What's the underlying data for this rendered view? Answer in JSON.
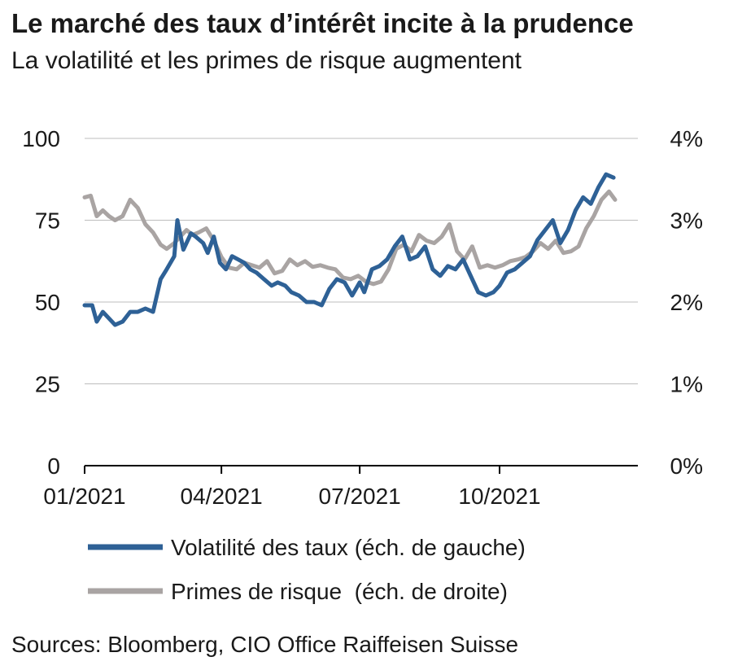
{
  "header": {
    "title": "Le marché des taux d’intérêt incite à la prudence",
    "subtitle": "La volatilité et les primes de risque augmentent"
  },
  "footer": {
    "source": "Sources: Bloomberg, CIO Office Raiffeisen Suisse"
  },
  "chart_data": {
    "type": "line",
    "title": "Le marché des taux d’intérêt incite à la prudence",
    "subtitle": "La volatilité et les primes de risque augmentent",
    "x_ticks": [
      "01/2021",
      "04/2021",
      "07/2021",
      "10/2021"
    ],
    "x_range": [
      "2021-01",
      "2021-12"
    ],
    "y_left": {
      "range": [
        0,
        100
      ],
      "ticks": [
        "0",
        "25",
        "50",
        "75",
        "100"
      ]
    },
    "y_right": {
      "range": [
        0,
        4
      ],
      "ticks": [
        "0%",
        "1%",
        "2%",
        "3%",
        "4%"
      ]
    },
    "grid": "horizontal",
    "legend_position": "bottom",
    "series": [
      {
        "name": "Volatilité des taux (éch. de gauche)",
        "axis": "left",
        "color": "#2e6196",
        "x": [
          "2021-01-01",
          "2021-01-06",
          "2021-01-09",
          "2021-01-13",
          "2021-01-17",
          "2021-01-21",
          "2021-01-26",
          "2021-01-31",
          "2021-02-05",
          "2021-02-10",
          "2021-02-15",
          "2021-02-20",
          "2021-02-24",
          "2021-03-01",
          "2021-03-03",
          "2021-03-07",
          "2021-03-12",
          "2021-03-15",
          "2021-03-20",
          "2021-03-23",
          "2021-03-27",
          "2021-03-31",
          "2021-04-04",
          "2021-04-08",
          "2021-04-12",
          "2021-04-16",
          "2021-04-20",
          "2021-04-24",
          "2021-04-29",
          "2021-05-04",
          "2021-05-08",
          "2021-05-13",
          "2021-05-17",
          "2021-05-22",
          "2021-05-27",
          "2021-06-01",
          "2021-06-06",
          "2021-06-11",
          "2021-06-16",
          "2021-06-21",
          "2021-06-26",
          "2021-07-01",
          "2021-07-04",
          "2021-07-09",
          "2021-07-14",
          "2021-07-19",
          "2021-07-24",
          "2021-07-29",
          "2021-08-03",
          "2021-08-08",
          "2021-08-13",
          "2021-08-18",
          "2021-08-23",
          "2021-08-28",
          "2021-09-02",
          "2021-09-07",
          "2021-09-12",
          "2021-09-17",
          "2021-09-22",
          "2021-09-27",
          "2021-10-01",
          "2021-10-06",
          "2021-10-11",
          "2021-10-16",
          "2021-10-21",
          "2021-10-26",
          "2021-10-31",
          "2021-11-05",
          "2021-11-10",
          "2021-11-15",
          "2021-11-20",
          "2021-11-25",
          "2021-11-30",
          "2021-12-05",
          "2021-12-10",
          "2021-12-15"
        ],
        "values": [
          49,
          49,
          44,
          47,
          45,
          43,
          44,
          47,
          47,
          48,
          47,
          57,
          60,
          64,
          75,
          66,
          71,
          70,
          68,
          65,
          70,
          62,
          60,
          64,
          63,
          62,
          60,
          59,
          57,
          55,
          56,
          55,
          53,
          52,
          50,
          50,
          49,
          54,
          57,
          56,
          52,
          56,
          53,
          60,
          61,
          63,
          67,
          70,
          63,
          64,
          67,
          60,
          58,
          61,
          60,
          63,
          58,
          53,
          52,
          53,
          55,
          59,
          60,
          62,
          64,
          69,
          72,
          75,
          68,
          72,
          78,
          82,
          80,
          85,
          89,
          88
        ]
      },
      {
        "name": "Primes de risque  (éch. de droite)",
        "axis": "right",
        "color": "#a9a4a3",
        "x": [
          "2021-01-01",
          "2021-01-05",
          "2021-01-09",
          "2021-01-13",
          "2021-01-17",
          "2021-01-21",
          "2021-01-26",
          "2021-01-31",
          "2021-02-05",
          "2021-02-10",
          "2021-02-15",
          "2021-02-20",
          "2021-02-24",
          "2021-03-01",
          "2021-03-05",
          "2021-03-09",
          "2021-03-13",
          "2021-03-17",
          "2021-03-22",
          "2021-03-27",
          "2021-04-01",
          "2021-04-06",
          "2021-04-11",
          "2021-04-16",
          "2021-04-21",
          "2021-04-26",
          "2021-05-01",
          "2021-05-06",
          "2021-05-11",
          "2021-05-16",
          "2021-05-21",
          "2021-05-26",
          "2021-05-31",
          "2021-06-05",
          "2021-06-10",
          "2021-06-15",
          "2021-06-20",
          "2021-06-25",
          "2021-06-30",
          "2021-07-05",
          "2021-07-10",
          "2021-07-15",
          "2021-07-20",
          "2021-07-25",
          "2021-07-30",
          "2021-08-04",
          "2021-08-09",
          "2021-08-14",
          "2021-08-19",
          "2021-08-24",
          "2021-08-29",
          "2021-09-03",
          "2021-09-08",
          "2021-09-13",
          "2021-09-18",
          "2021-09-23",
          "2021-09-28",
          "2021-10-03",
          "2021-10-08",
          "2021-10-13",
          "2021-10-18",
          "2021-10-23",
          "2021-10-28",
          "2021-11-02",
          "2021-11-07",
          "2021-11-12",
          "2021-11-17",
          "2021-11-22",
          "2021-11-27",
          "2021-12-02",
          "2021-12-07",
          "2021-12-12",
          "2021-12-16"
        ],
        "values": [
          3.28,
          3.3,
          3.05,
          3.12,
          3.05,
          3.0,
          3.05,
          3.25,
          3.15,
          2.95,
          2.85,
          2.7,
          2.65,
          2.72,
          2.8,
          2.88,
          2.82,
          2.85,
          2.9,
          2.75,
          2.55,
          2.42,
          2.4,
          2.48,
          2.45,
          2.42,
          2.5,
          2.35,
          2.38,
          2.52,
          2.45,
          2.5,
          2.43,
          2.45,
          2.42,
          2.4,
          2.3,
          2.28,
          2.32,
          2.25,
          2.22,
          2.25,
          2.4,
          2.65,
          2.7,
          2.62,
          2.82,
          2.75,
          2.72,
          2.8,
          2.95,
          2.62,
          2.52,
          2.68,
          2.42,
          2.45,
          2.42,
          2.45,
          2.5,
          2.52,
          2.55,
          2.62,
          2.72,
          2.65,
          2.75,
          2.6,
          2.62,
          2.68,
          2.9,
          3.05,
          3.25,
          3.35,
          3.25
        ]
      }
    ]
  }
}
